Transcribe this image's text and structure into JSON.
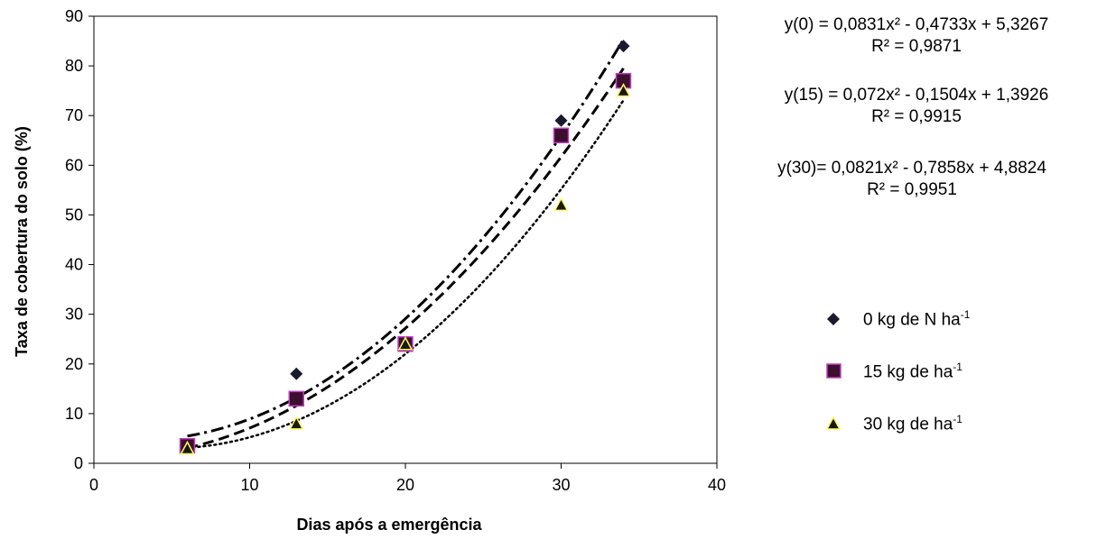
{
  "chart_data": {
    "type": "scatter",
    "xlabel": "Dias após a emergência",
    "ylabel": "Taxa de cobertura do solo (%)",
    "xlim": [
      0,
      40
    ],
    "ylim": [
      0,
      90
    ],
    "xticks": [
      "0",
      "10",
      "20",
      "30",
      "40"
    ],
    "yticks": [
      "0",
      "10",
      "20",
      "30",
      "40",
      "50",
      "60",
      "70",
      "80",
      "90"
    ],
    "x": [
      6,
      13,
      20,
      30,
      34
    ],
    "grid": false,
    "series": [
      {
        "name": "0 kg de N ha",
        "name_sup": "-1",
        "marker": "diamond",
        "color": "#1a1a2e",
        "values": [
          3.5,
          18,
          24,
          69,
          84
        ],
        "trend": {
          "a": 0.0831,
          "b": -0.4733,
          "c": 5.3267,
          "style": "dash-dot"
        },
        "equation": "y(0) = 0,0831x² - 0,4733x + 5,3267",
        "r2": "R² = 0,9871"
      },
      {
        "name": "15 kg de ha",
        "name_sup": "-1",
        "marker": "square",
        "color": "#3d0f2e",
        "edge": "#c040c0",
        "values": [
          3.5,
          13,
          24,
          66,
          77
        ],
        "trend": {
          "a": 0.072,
          "b": -0.1504,
          "c": 1.3926,
          "style": "dashed"
        },
        "equation": "y(15) = 0,072x² - 0,1504x + 1,3926",
        "r2": "R² = 0,9915"
      },
      {
        "name": "30 kg de ha",
        "name_sup": "-1",
        "marker": "triangle",
        "color": "#1a1a00",
        "edge": "#ffff66",
        "values": [
          3,
          8,
          24,
          52,
          75
        ],
        "trend": {
          "a": 0.0821,
          "b": -0.7858,
          "c": 4.8824,
          "style": "dotted"
        },
        "equation": "y(30)= 0,0821x² - 0,7858x + 4,8824",
        "r2": "R² = 0,9951"
      }
    ]
  }
}
